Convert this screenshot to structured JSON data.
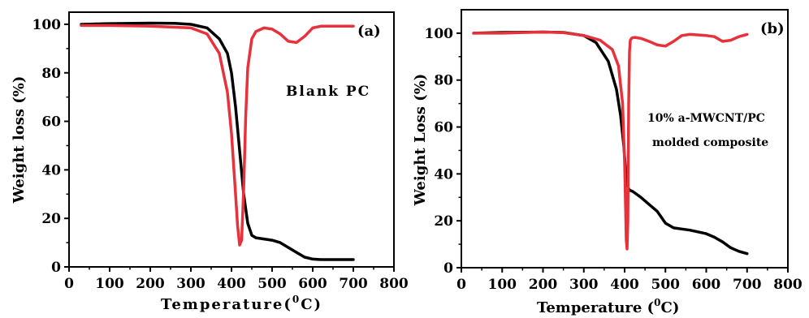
{
  "chart_data": [
    {
      "type": "line",
      "panel_label": "(a)",
      "annotation": [
        "Blank PC"
      ],
      "xlabel": "Temperature(",
      "xlabel_unit": "C)",
      "xlabel_sup": "0",
      "ylabel": "Weight loss (%)",
      "xlim": [
        0,
        800
      ],
      "ylim": [
        0,
        105
      ],
      "xticks": [
        "0",
        "100",
        "200",
        "300",
        "400",
        "500",
        "600",
        "700",
        "800"
      ],
      "yticks": [
        "0",
        "20",
        "40",
        "60",
        "80",
        "100"
      ],
      "grid": false,
      "series": [
        {
          "color": "#000000",
          "x": [
            30,
            100,
            200,
            260,
            300,
            340,
            370,
            390,
            400,
            410,
            420,
            430,
            440,
            450,
            460,
            480,
            500,
            520,
            540,
            560,
            580,
            600,
            620,
            660,
            700
          ],
          "y": [
            100,
            100.3,
            100.5,
            100.4,
            100,
            98.5,
            94,
            88,
            80,
            66,
            48,
            30,
            18,
            13,
            12,
            11.5,
            11,
            10,
            8,
            6,
            4,
            3.2,
            3,
            3,
            3
          ]
        },
        {
          "color": "#e8323b",
          "x": [
            30,
            100,
            200,
            300,
            340,
            370,
            390,
            400,
            410,
            415,
            420,
            425,
            430,
            435,
            440,
            450,
            460,
            480,
            500,
            520,
            540,
            560,
            580,
            600,
            620,
            650,
            700
          ],
          "y": [
            99.5,
            99.5,
            99.2,
            98.5,
            96,
            88,
            72,
            55,
            30,
            17,
            9,
            11,
            32,
            62,
            82,
            94,
            97,
            98.5,
            98,
            96,
            93,
            92.5,
            95,
            98.5,
            99.2,
            99.2,
            99.2
          ]
        }
      ]
    },
    {
      "type": "line",
      "panel_label": "(b)",
      "annotation": [
        "10% a-MWCNT/PC",
        "molded composite"
      ],
      "xlabel": "Temperature (",
      "xlabel_unit": "C)",
      "xlabel_sup": "0",
      "ylabel": "Weight Loss (%)",
      "xlim": [
        0,
        800
      ],
      "ylim": [
        0,
        110
      ],
      "xticks": [
        "0",
        "100",
        "200",
        "300",
        "400",
        "500",
        "600",
        "700",
        "800"
      ],
      "yticks": [
        "0",
        "20",
        "40",
        "60",
        "80",
        "100"
      ],
      "grid": false,
      "series": [
        {
          "color": "#000000",
          "x": [
            30,
            100,
            200,
            250,
            300,
            330,
            360,
            380,
            390,
            398,
            403,
            407,
            410,
            413,
            420,
            440,
            460,
            480,
            500,
            520,
            540,
            560,
            600,
            620,
            640,
            660,
            680,
            700
          ],
          "y": [
            100,
            100.3,
            100.5,
            100.3,
            99,
            96,
            88,
            76,
            65,
            52,
            40,
            35,
            33.5,
            33,
            32.5,
            30,
            27,
            24,
            19,
            17,
            16.5,
            16,
            14.5,
            13,
            11,
            8.5,
            7,
            6
          ]
        },
        {
          "color": "#e8323b",
          "x": [
            30,
            100,
            200,
            250,
            300,
            340,
            370,
            385,
            395,
            400,
            404,
            406,
            408,
            410,
            412,
            414,
            418,
            425,
            440,
            460,
            480,
            500,
            520,
            540,
            560,
            600,
            620,
            640,
            660,
            680,
            700
          ],
          "y": [
            100,
            100,
            100.5,
            100.2,
            99,
            97,
            93,
            86,
            70,
            45,
            12,
            8,
            20,
            70,
            92,
            97,
            98,
            98.2,
            97.8,
            96.5,
            95,
            94.5,
            96.5,
            99,
            99.5,
            99,
            98.5,
            96.5,
            97,
            98.5,
            99.5
          ]
        }
      ]
    }
  ]
}
